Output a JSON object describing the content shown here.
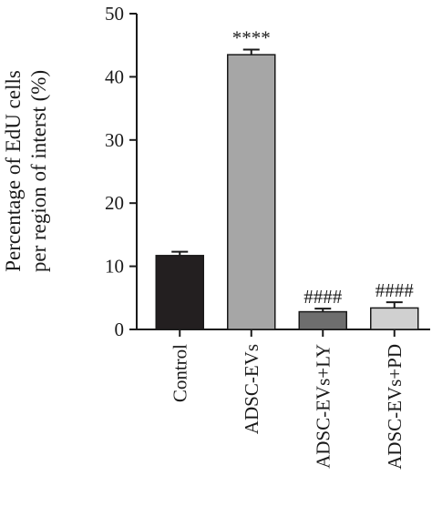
{
  "chart_data": {
    "type": "bar",
    "title": "",
    "xlabel": "",
    "ylabel_lines": [
      "Percentage of EdU cells",
      "per region of interst (%)"
    ],
    "ylim": [
      0,
      50
    ],
    "yticks": [
      0,
      10,
      20,
      30,
      40,
      50
    ],
    "ytick_labels": [
      "0",
      "10",
      "20",
      "30",
      "40",
      "50"
    ],
    "categories": [
      "Control",
      "ADSC-EVs",
      "ADSC-EVs+LY",
      "ADSC-EVs+PD"
    ],
    "values": [
      11.7,
      43.5,
      2.8,
      3.4
    ],
    "errors": [
      0.6,
      0.8,
      0.5,
      0.9
    ],
    "significance": [
      "",
      "****",
      "####",
      "####"
    ],
    "bar_colors": [
      "#231f20",
      "#a6a6a6",
      "#6e6e6e",
      "#d0d0d0"
    ],
    "grid": false,
    "legend": "none"
  }
}
